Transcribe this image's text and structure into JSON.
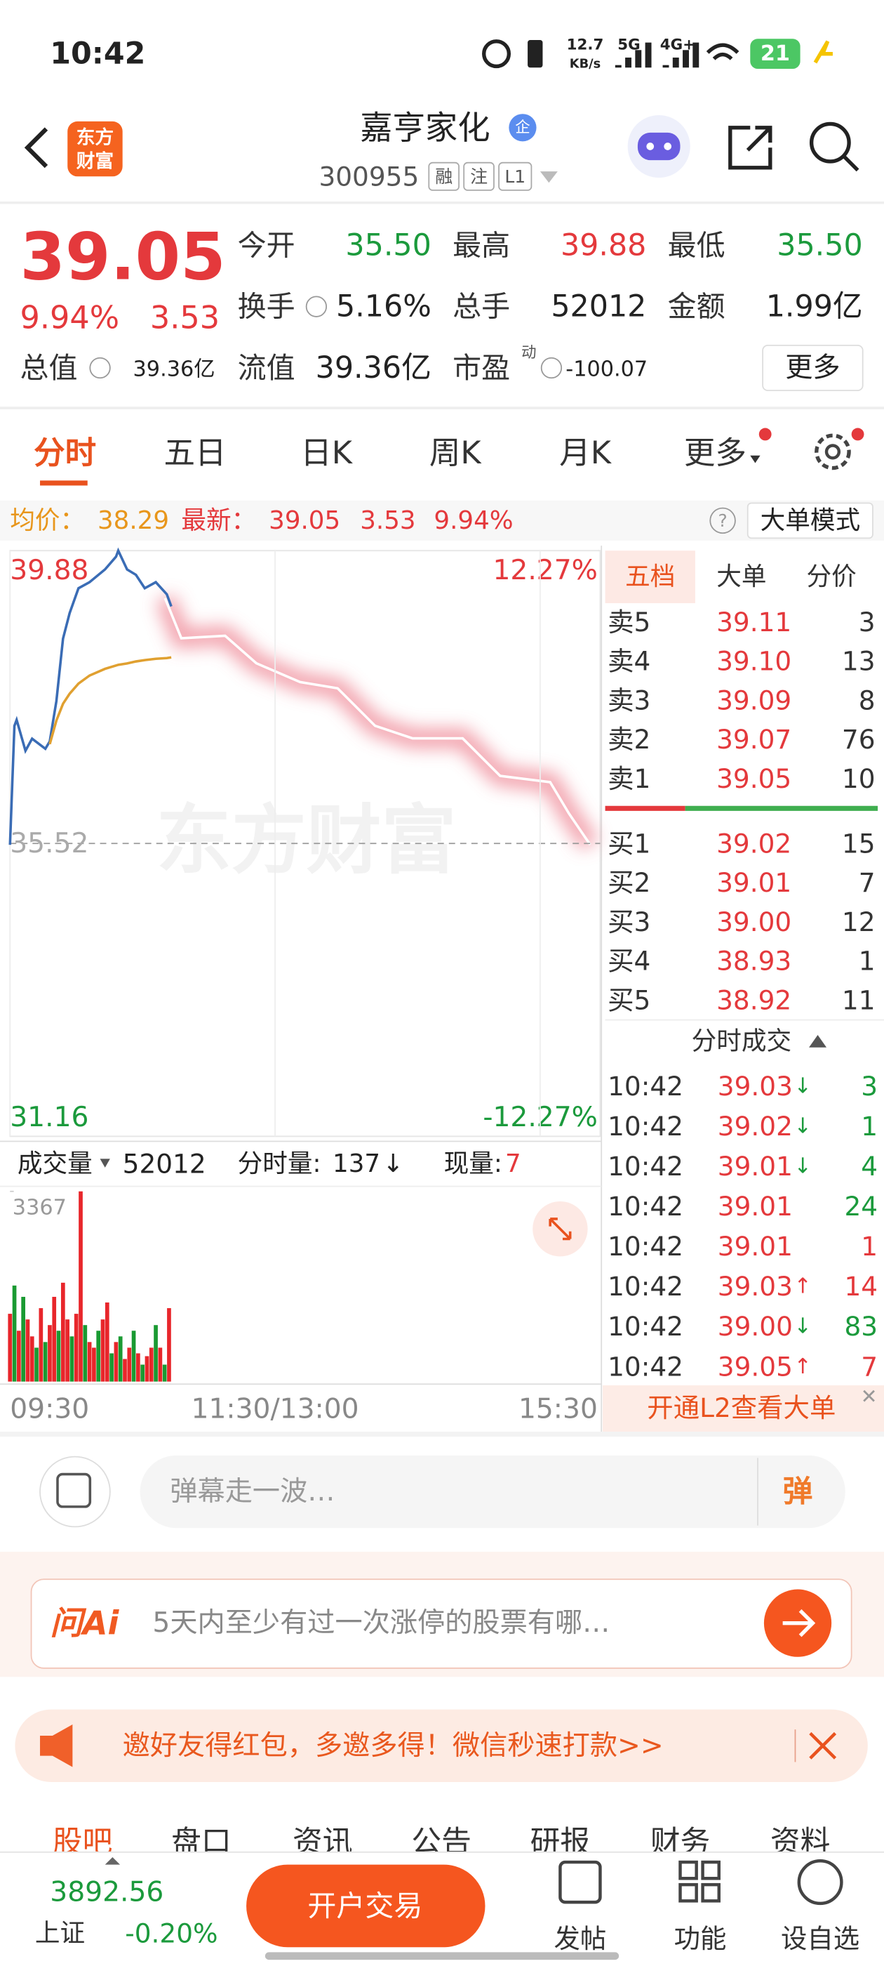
{
  "status_bar": {
    "time": "10:42",
    "speed": "12.7",
    "speed_unit": "KB/s",
    "net1": "5G",
    "net2": "4G+",
    "battery": "21"
  },
  "header": {
    "logo": [
      "东方",
      "财富"
    ],
    "title": "嘉亨家化",
    "badge": "企",
    "code": "300955",
    "tags": [
      "融",
      "注",
      "L1"
    ]
  },
  "quote": {
    "price": "39.05",
    "change_pct": "9.94%",
    "change": "3.53",
    "stats": [
      {
        "label": "今开",
        "value": "35.50",
        "color": "#1b9a3c"
      },
      {
        "label": "最高",
        "value": "39.88",
        "color": "#e4393c"
      },
      {
        "label": "最低",
        "value": "35.50",
        "color": "#1b9a3c"
      },
      {
        "label": "换手",
        "value": "5.16%",
        "color": "#222222"
      },
      {
        "label": "总手",
        "value": "52012",
        "color": "#222222"
      },
      {
        "label": "金额",
        "value": "1.99亿",
        "color": "#222222"
      },
      {
        "label": "总值",
        "value": "39.36亿",
        "color": "#222222"
      },
      {
        "label": "流值",
        "value": "39.36亿",
        "color": "#222222"
      },
      {
        "label": "市盈",
        "value": "-100.07",
        "color": "#222222"
      }
    ],
    "pe_mark": "动",
    "more": "更多"
  },
  "tabs": [
    "分时",
    "五日",
    "日K",
    "周K",
    "月K",
    "更多"
  ],
  "info_bar": {
    "avg_label": "均价：",
    "avg": "38.29",
    "latest_label": "最新：",
    "latest": "39.05",
    "change": "3.53",
    "change_pct": "9.94%",
    "help": "?",
    "mode": "大单模式"
  },
  "watermark": "东方财富",
  "chart_data": [
    {
      "type": "line",
      "x": [
        0,
        2,
        3,
        7,
        10,
        16,
        18,
        21,
        24,
        27,
        31,
        36,
        43,
        48,
        49,
        53,
        57,
        61,
        66,
        71,
        73
      ],
      "series": [
        {
          "color": "#3a6cb5",
          "values": [
            35.5,
            37.27,
            37.36,
            36.9,
            37.08,
            36.93,
            37.04,
            37.64,
            38.57,
            38.95,
            39.32,
            39.41,
            39.6,
            39.79,
            39.88,
            39.6,
            39.52,
            39.32,
            39.41,
            39.23,
            39.05
          ]
        },
        {
          "color": "#e0a030",
          "values": [
            null,
            null,
            null,
            null,
            null,
            null,
            37.0,
            37.35,
            37.6,
            37.75,
            37.9,
            38.02,
            38.12,
            38.17,
            38.18,
            38.2,
            38.23,
            38.25,
            38.27,
            38.28,
            38.29
          ]
        }
      ],
      "xlim": [
        0,
        240
      ],
      "xticks": [
        {
          "value": 0,
          "label": "09:30"
        },
        {
          "value": 120,
          "label": "11:30/13:00"
        },
        {
          "value": 240,
          "label": "15:30"
        }
      ],
      "ylim": [
        31.16,
        39.88
      ],
      "yticks": [
        31.16,
        35.52,
        39.88
      ],
      "y2lim": [
        -12.27,
        12.27
      ],
      "y2ticks": [
        {
          "value": -12.27,
          "label": "-12.27%"
        },
        {
          "value": 12.27,
          "label": "12.27%"
        }
      ]
    },
    {
      "type": "bar",
      "x": [
        0,
        2,
        4,
        6,
        8,
        10,
        12,
        14,
        16,
        18,
        20,
        22,
        24,
        26,
        28,
        30,
        32,
        34,
        36,
        38,
        40,
        42,
        44,
        46,
        48,
        50,
        52,
        54,
        56,
        58,
        60,
        62,
        64,
        66,
        68,
        70,
        72
      ],
      "values": [
        1200,
        1700,
        900,
        1500,
        1100,
        800,
        600,
        1300,
        700,
        1000,
        1500,
        900,
        1750,
        1100,
        800,
        1200,
        3367,
        1000,
        700,
        600,
        900,
        1100,
        1400,
        500,
        700,
        800,
        400,
        600,
        900,
        500,
        300,
        450,
        600,
        1000,
        600,
        300,
        1300
      ],
      "colors": [
        "#e8262b",
        "#1a9a32",
        "#e8262b",
        "#1a9a32",
        "#e8262b",
        "#e8262b",
        "#1a9a32",
        "#e8262b",
        "#1a9a32",
        "#e8262b",
        "#e8262b",
        "#1a9a32",
        "#e8262b",
        "#e8262b",
        "#1a9a32",
        "#e8262b",
        "#e8262b",
        "#1a9a32",
        "#e8262b",
        "#e8262b",
        "#1a9a32",
        "#e8262b",
        "#e8262b",
        "#1a9a32",
        "#e8262b",
        "#1a9a32",
        "#e8262b",
        "#e8262b",
        "#1a9a32",
        "#e8262b",
        "#1a9a32",
        "#e8262b",
        "#e8262b",
        "#1a9a32",
        "#e8262b",
        "#1a9a32",
        "#e8262b"
      ],
      "xlim": [
        0,
        240
      ],
      "ylim": [
        0,
        3367
      ],
      "yticks": [
        3367
      ]
    }
  ],
  "volume_bar": {
    "label": "成交量",
    "total": "52012",
    "minute_label": "分时量:",
    "minute_vol": "137",
    "minute_dir": "↓",
    "current_label": "现量:",
    "current": "7"
  },
  "order_book": {
    "tabs": [
      "五档",
      "大单",
      "分价"
    ],
    "sells": [
      {
        "label": "卖5",
        "price": "39.11",
        "volume": "3"
      },
      {
        "label": "卖4",
        "price": "39.10",
        "volume": "13"
      },
      {
        "label": "卖3",
        "price": "39.09",
        "volume": "8"
      },
      {
        "label": "卖2",
        "price": "39.07",
        "volume": "76"
      },
      {
        "label": "卖1",
        "price": "39.05",
        "volume": "10"
      }
    ],
    "buys": [
      {
        "label": "买1",
        "price": "39.02",
        "volume": "15"
      },
      {
        "label": "买2",
        "price": "39.01",
        "volume": "7"
      },
      {
        "label": "买3",
        "price": "39.00",
        "volume": "12"
      },
      {
        "label": "买4",
        "price": "38.93",
        "volume": "1"
      },
      {
        "label": "买5",
        "price": "38.92",
        "volume": "11"
      }
    ]
  },
  "trades": {
    "title": "分时成交",
    "rows": [
      {
        "time": "10:42",
        "price": "39.03",
        "dir": "↓",
        "volume": "3",
        "color": "#1b9a3c"
      },
      {
        "time": "10:42",
        "price": "39.02",
        "dir": "↓",
        "volume": "1",
        "color": "#1b9a3c"
      },
      {
        "time": "10:42",
        "price": "39.01",
        "dir": "↓",
        "volume": "4",
        "color": "#1b9a3c"
      },
      {
        "time": "10:42",
        "price": "39.01",
        "volume": "24",
        "color": "#1b9a3c"
      },
      {
        "time": "10:42",
        "price": "39.01",
        "volume": "1",
        "color": "#e4393c"
      },
      {
        "time": "10:42",
        "price": "39.03",
        "dir": "↑",
        "volume": "14",
        "color": "#e4393c"
      },
      {
        "time": "10:42",
        "price": "39.00",
        "dir": "↓",
        "volume": "83",
        "color": "#1b9a3c"
      },
      {
        "time": "10:42",
        "price": "39.05",
        "dir": "↑",
        "volume": "7",
        "color": "#e4393c"
      }
    ]
  },
  "l2_banner": "开通L2查看大单",
  "danmu": {
    "placeholder": "弹幕走一波…",
    "button": "弹"
  },
  "ai": {
    "label": "问Ai",
    "prompt": "5天内至少有过一次涨停的股票有哪…"
  },
  "promo": "邀好友得红包，多邀多得！微信秒速打款>>",
  "sections": [
    "股吧",
    "盘口",
    "资讯",
    "公告",
    "研报",
    "财务",
    "资料"
  ],
  "bottom_bar": {
    "index_value": "3892.56",
    "index_name": "上证",
    "index_change": "-0.20%",
    "trade_button": "开户交易",
    "actions": [
      "发帖",
      "功能",
      "设自选"
    ]
  }
}
